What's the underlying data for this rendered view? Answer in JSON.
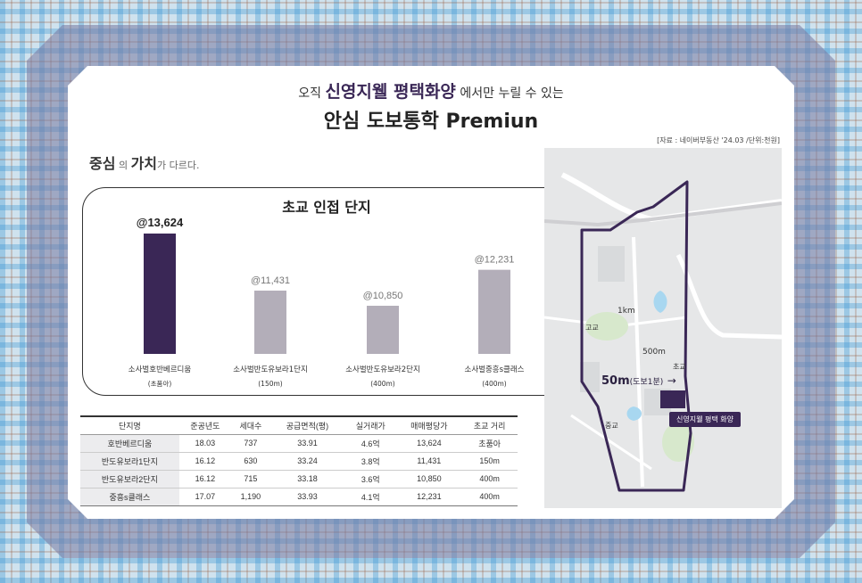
{
  "header": {
    "line1_prefix": "오직",
    "line1_brand": "신영지웰 평택화양",
    "line1_suffix": "에서만 누릴 수 있는",
    "line2": "안심 도보통학 Premiun"
  },
  "source": "[자료 : 네이버부동산 '24.03 /단위:천원]",
  "subhead": {
    "word1": "중심",
    "particle1": "의",
    "word2": "가치",
    "rest": "가 다르다."
  },
  "colors": {
    "highlight_bar": "#3a2756",
    "other_bar": "#b3aeb9",
    "route": "#3a2756"
  },
  "chart_data": {
    "type": "bar",
    "title": "초교 인접 단지",
    "categories": [
      "소사벌호반베르디움",
      "소사벌반도유보라1단지",
      "소사벌반도유보라2단지",
      "소사벌중흥s클래스"
    ],
    "category_notes": [
      "(초품아)",
      "(150m)",
      "(400m)",
      "(400m)"
    ],
    "values": [
      13624,
      11431,
      10850,
      12231
    ],
    "value_labels": [
      "@13,624",
      "@11,431",
      "@10,850",
      "@12,231"
    ],
    "highlight_index": 0,
    "ylim": [
      9000,
      14000
    ]
  },
  "table": {
    "headers": [
      "단지명",
      "준공년도",
      "세대수",
      "공급면적(평)",
      "실거래가",
      "매매평당가",
      "초교 거리"
    ],
    "rows": [
      [
        "호반베르디움",
        "18.03",
        "737",
        "33.91",
        "4.6억",
        "13,624",
        "초품아"
      ],
      [
        "반도유보라1단지",
        "16.12",
        "630",
        "33.24",
        "3.8억",
        "11,431",
        "150m"
      ],
      [
        "반도유보라2단지",
        "16.12",
        "715",
        "33.18",
        "3.6억",
        "10,850",
        "400m"
      ],
      [
        "중흥s클래스",
        "17.07",
        "1,190",
        "33.93",
        "4.1억",
        "12,231",
        "400m"
      ]
    ]
  },
  "map": {
    "label_1km": "1km",
    "label_500m": "500m",
    "label_high": "고교",
    "label_elem": "초교",
    "label_mid": "중교",
    "walk_distance": "50m",
    "walk_note": "(도보1분)",
    "arrow": "→",
    "site_label": "신영지웰 평택 화양"
  }
}
